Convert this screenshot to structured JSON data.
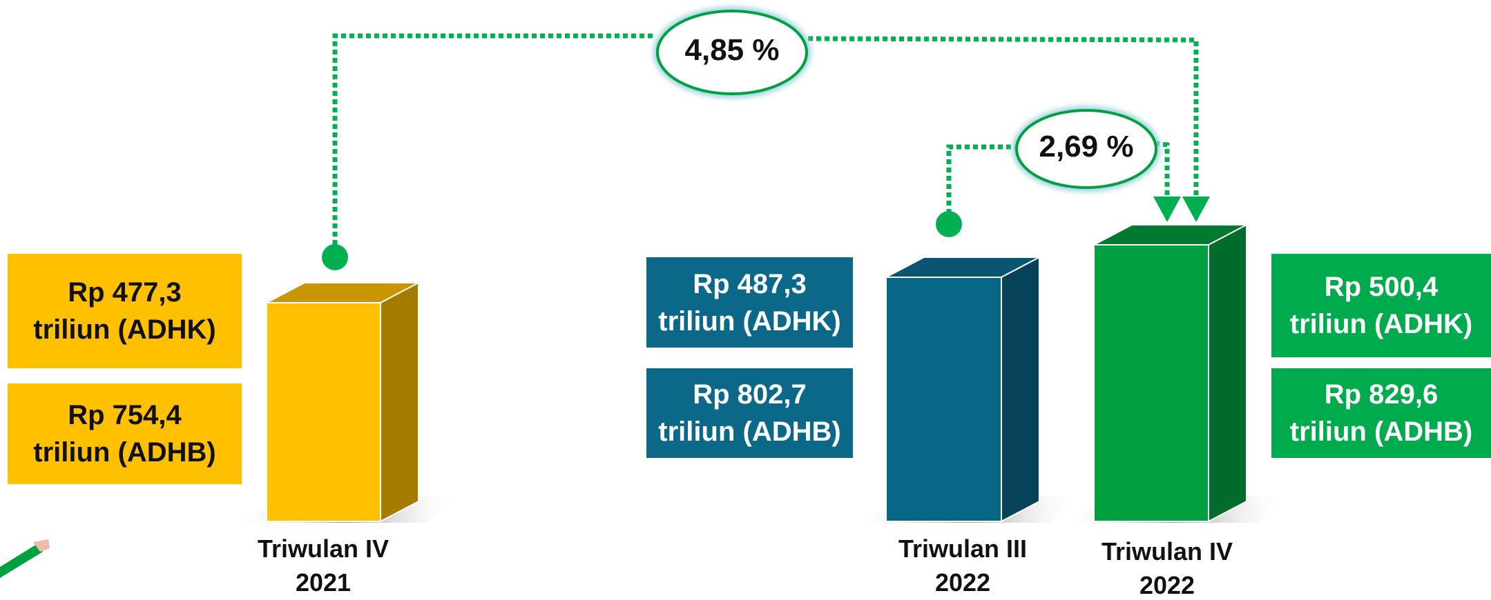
{
  "growth": {
    "yoy": "4,85 %",
    "qtq": "2,69 %"
  },
  "periods": [
    {
      "label": [
        "Triwulan IV",
        "2021"
      ],
      "adhk": [
        "Rp 477,3",
        "triliun (ADHK)"
      ],
      "adhb": [
        "Rp 754,4",
        "triliun (ADHB)"
      ]
    },
    {
      "label": [
        "Triwulan III",
        "2022"
      ],
      "adhk": [
        "Rp 487,3",
        "triliun (ADHK)"
      ],
      "adhb": [
        "Rp 802,7",
        "triliun (ADHB)"
      ]
    },
    {
      "label": [
        "Triwulan IV",
        "2022"
      ],
      "adhk": [
        "Rp 500,4",
        "triliun (ADHK)"
      ],
      "adhb": [
        "Rp 829,6",
        "triliun (ADHB)"
      ]
    }
  ]
}
